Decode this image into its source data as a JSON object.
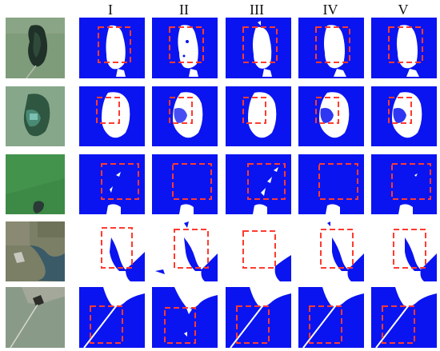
{
  "column_headers": [
    "I",
    "II",
    "III",
    "IV",
    "V"
  ],
  "colors": {
    "water": "#0a14f0",
    "land": "#ffffff",
    "roi": "#ff3b2f"
  }
}
